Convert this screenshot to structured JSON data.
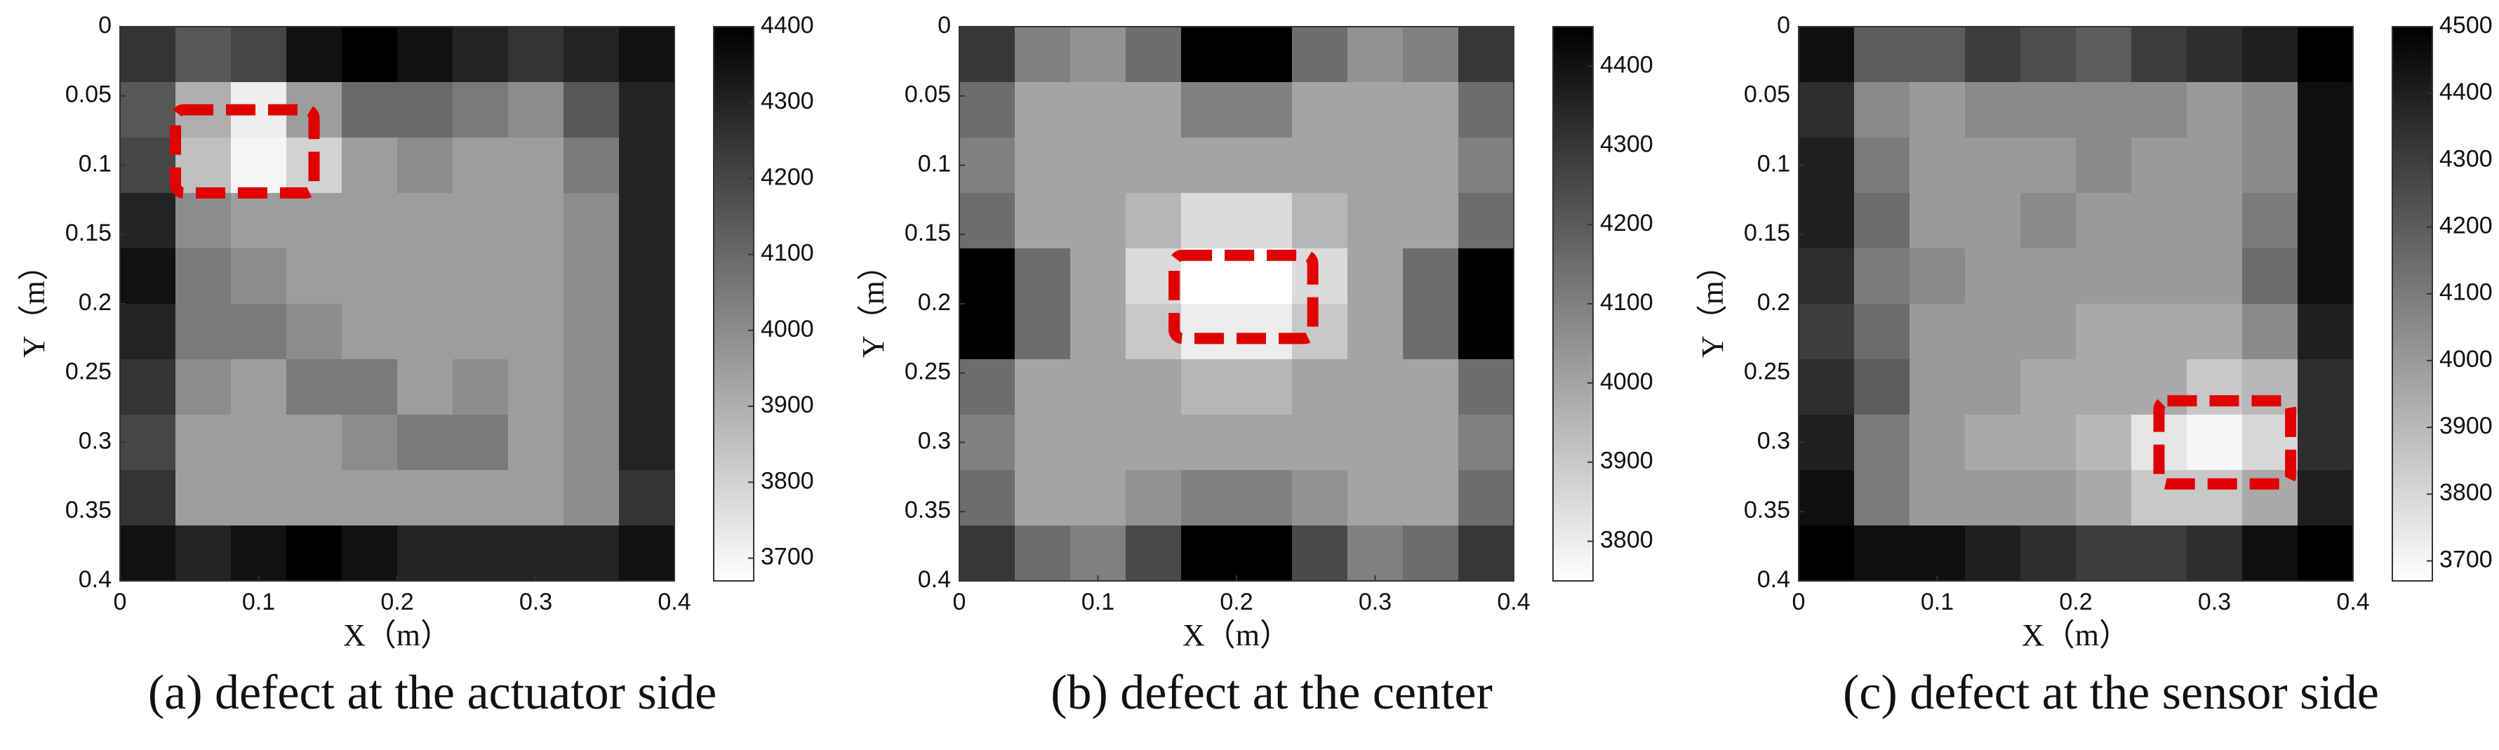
{
  "chart_data": [
    {
      "type": "heatmap",
      "caption": "(a) defect at the actuator side",
      "xlabel": "X（m）",
      "ylabel": "Y（m）",
      "xlim": [
        0,
        0.4
      ],
      "ylim": [
        0,
        0.4
      ],
      "xticks": [
        0,
        0.1,
        0.2,
        0.3,
        0.4
      ],
      "yticks": [
        0,
        0.05,
        0.1,
        0.15,
        0.2,
        0.25,
        0.3,
        0.35,
        0.4
      ],
      "clim": [
        3670,
        4400
      ],
      "cticks": [
        3700,
        3800,
        3900,
        4000,
        4100,
        4200,
        4300,
        4400
      ],
      "colormap": "gray-reversed",
      "values": [
        [
          4250,
          4150,
          4200,
          4350,
          4400,
          4350,
          4300,
          4250,
          4300,
          4350
        ],
        [
          4150,
          3900,
          3720,
          3950,
          4100,
          4100,
          4050,
          4000,
          4150,
          4300
        ],
        [
          4200,
          3850,
          3700,
          3800,
          3950,
          4000,
          3950,
          3950,
          4050,
          4300
        ],
        [
          4300,
          4000,
          3950,
          3950,
          3950,
          3950,
          3950,
          3950,
          4000,
          4300
        ],
        [
          4350,
          4050,
          4000,
          3950,
          3950,
          3950,
          3950,
          3950,
          4000,
          4300
        ],
        [
          4300,
          4050,
          4050,
          4000,
          3950,
          3950,
          3950,
          3950,
          4000,
          4300
        ],
        [
          4250,
          4000,
          3950,
          4050,
          4050,
          3950,
          4000,
          3950,
          4000,
          4300
        ],
        [
          4200,
          3950,
          3950,
          3950,
          4000,
          4050,
          4050,
          3950,
          4000,
          4300
        ],
        [
          4250,
          3950,
          3950,
          3950,
          3950,
          3950,
          3950,
          3950,
          4000,
          4250
        ],
        [
          4350,
          4300,
          4350,
          4400,
          4350,
          4300,
          4300,
          4300,
          4300,
          4350
        ]
      ]
    },
    {
      "type": "heatmap",
      "caption": "(b) defect at the center",
      "xlabel": "X（m）",
      "ylabel": "Y（m）",
      "xlim": [
        0,
        0.4
      ],
      "ylim": [
        0,
        0.4
      ],
      "xticks": [
        0,
        0.1,
        0.2,
        0.3,
        0.4
      ],
      "yticks": [
        0,
        0.05,
        0.1,
        0.15,
        0.2,
        0.25,
        0.3,
        0.35,
        0.4
      ],
      "clim": [
        3750,
        4450
      ],
      "cticks": [
        3800,
        3900,
        4000,
        4100,
        4200,
        4300,
        4400
      ],
      "colormap": "gray-reversed",
      "values": [
        [
          4300,
          4100,
          4050,
          4150,
          4450,
          4450,
          4150,
          4050,
          4100,
          4300
        ],
        [
          4150,
          4000,
          4000,
          4000,
          4100,
          4100,
          4000,
          4000,
          4000,
          4150
        ],
        [
          4100,
          4000,
          4000,
          4000,
          4000,
          4000,
          4000,
          4000,
          4000,
          4100
        ],
        [
          4150,
          4000,
          4000,
          3950,
          3850,
          3850,
          3950,
          4000,
          4000,
          4150
        ],
        [
          4450,
          4150,
          4000,
          3850,
          3750,
          3750,
          3850,
          4000,
          4150,
          4450
        ],
        [
          4450,
          4150,
          4000,
          3900,
          3800,
          3800,
          3900,
          4000,
          4150,
          4450
        ],
        [
          4150,
          4000,
          4000,
          4000,
          3950,
          3950,
          4000,
          4000,
          4000,
          4150
        ],
        [
          4100,
          4000,
          4000,
          4000,
          4000,
          4000,
          4000,
          4000,
          4000,
          4100
        ],
        [
          4150,
          4000,
          4000,
          4050,
          4100,
          4100,
          4050,
          4000,
          4000,
          4150
        ],
        [
          4300,
          4150,
          4100,
          4250,
          4450,
          4450,
          4250,
          4100,
          4150,
          4300
        ]
      ]
    },
    {
      "type": "heatmap",
      "caption": "(c) defect at the sensor side",
      "xlabel": "X（m）",
      "ylabel": "Y（m）",
      "xlim": [
        0,
        0.4
      ],
      "ylim": [
        0,
        0.4
      ],
      "xticks": [
        0,
        0.1,
        0.2,
        0.3,
        0.4
      ],
      "yticks": [
        0,
        0.05,
        0.1,
        0.15,
        0.2,
        0.25,
        0.3,
        0.35,
        0.4
      ],
      "clim": [
        3670,
        4500
      ],
      "cticks": [
        3700,
        3800,
        3900,
        4000,
        4100,
        4200,
        4300,
        4400,
        4500
      ],
      "colormap": "gray-reversed",
      "values": [
        [
          4450,
          4200,
          4200,
          4300,
          4250,
          4200,
          4300,
          4350,
          4400,
          4500
        ],
        [
          4350,
          4050,
          4000,
          4050,
          4050,
          4050,
          4050,
          4000,
          4050,
          4450
        ],
        [
          4400,
          4100,
          4000,
          4000,
          4000,
          4050,
          4000,
          4000,
          4050,
          4450
        ],
        [
          4400,
          4150,
          4000,
          4000,
          4050,
          4000,
          4000,
          4000,
          4100,
          4450
        ],
        [
          4350,
          4100,
          4050,
          4000,
          4000,
          4000,
          4000,
          4000,
          4150,
          4450
        ],
        [
          4300,
          4150,
          4000,
          4000,
          4000,
          3950,
          3950,
          3950,
          4050,
          4400
        ],
        [
          4350,
          4200,
          4000,
          4000,
          3950,
          3950,
          3950,
          3850,
          3900,
          4350
        ],
        [
          4400,
          4100,
          4000,
          3950,
          3950,
          3900,
          3750,
          3700,
          3800,
          4350
        ],
        [
          4450,
          4100,
          4000,
          4000,
          4000,
          3950,
          3850,
          3850,
          3950,
          4400
        ],
        [
          4500,
          4450,
          4450,
          4400,
          4350,
          4300,
          4300,
          4350,
          4450,
          4500
        ]
      ]
    }
  ]
}
